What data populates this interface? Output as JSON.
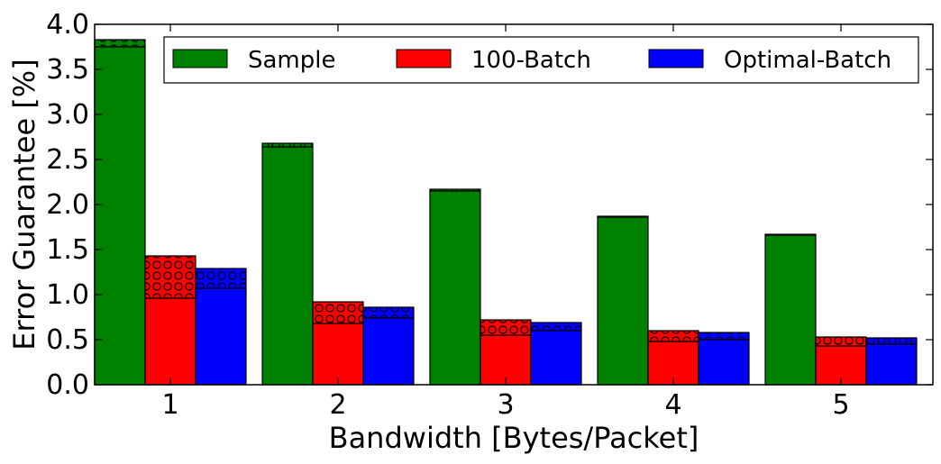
{
  "chart_data": {
    "type": "bar",
    "xlabel": "Bandwidth [Bytes/Packet]",
    "ylabel": "Error Guarantee [%]",
    "categories": [
      "1",
      "2",
      "3",
      "4",
      "5"
    ],
    "ylim": [
      0,
      4.0
    ],
    "yticks": [
      "0.0",
      "0.5",
      "1.0",
      "1.5",
      "2.0",
      "2.5",
      "3.0",
      "3.5",
      "4.0"
    ],
    "legend_position": "top",
    "series": [
      {
        "name": "Sample",
        "color": "#008000",
        "values": [
          3.75,
          2.64,
          2.15,
          1.86,
          1.66
        ],
        "upper_values": [
          3.83,
          2.68,
          2.17,
          1.87,
          1.67
        ]
      },
      {
        "name": "100-Batch",
        "color": "#ff0000",
        "values": [
          0.96,
          0.68,
          0.55,
          0.48,
          0.43
        ],
        "upper_values": [
          1.43,
          0.92,
          0.72,
          0.6,
          0.53
        ]
      },
      {
        "name": "Optimal-Batch",
        "color": "#0000ff",
        "values": [
          1.07,
          0.74,
          0.6,
          0.5,
          0.45
        ],
        "upper_values": [
          1.29,
          0.86,
          0.69,
          0.58,
          0.52
        ]
      }
    ]
  }
}
